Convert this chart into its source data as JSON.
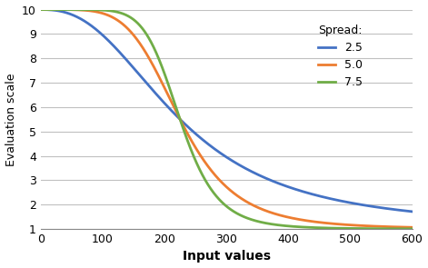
{
  "title": "",
  "xlabel": "Input values",
  "ylabel": "Evaluation scale",
  "xlim": [
    0,
    600
  ],
  "ylim": [
    1,
    10
  ],
  "xticks": [
    0,
    100,
    200,
    300,
    400,
    500,
    600
  ],
  "yticks": [
    1,
    2,
    3,
    4,
    5,
    6,
    7,
    8,
    9,
    10
  ],
  "midpoint": 225,
  "min_val": 1,
  "max_val": 10,
  "spreads": [
    2.5,
    5.0,
    7.5
  ],
  "colors": [
    "#4472c4",
    "#ed7d31",
    "#70ad47"
  ],
  "legend_title": "Spread:",
  "legend_labels": [
    "2.5",
    "5.0",
    "7.5"
  ],
  "grid_color": "#c0c0c0",
  "background_color": "#ffffff",
  "line_width": 2.0,
  "xlabel_fontsize": 10,
  "ylabel_fontsize": 9,
  "tick_fontsize": 9,
  "legend_fontsize": 9,
  "figsize": [
    4.71,
    2.95
  ],
  "dpi": 100
}
